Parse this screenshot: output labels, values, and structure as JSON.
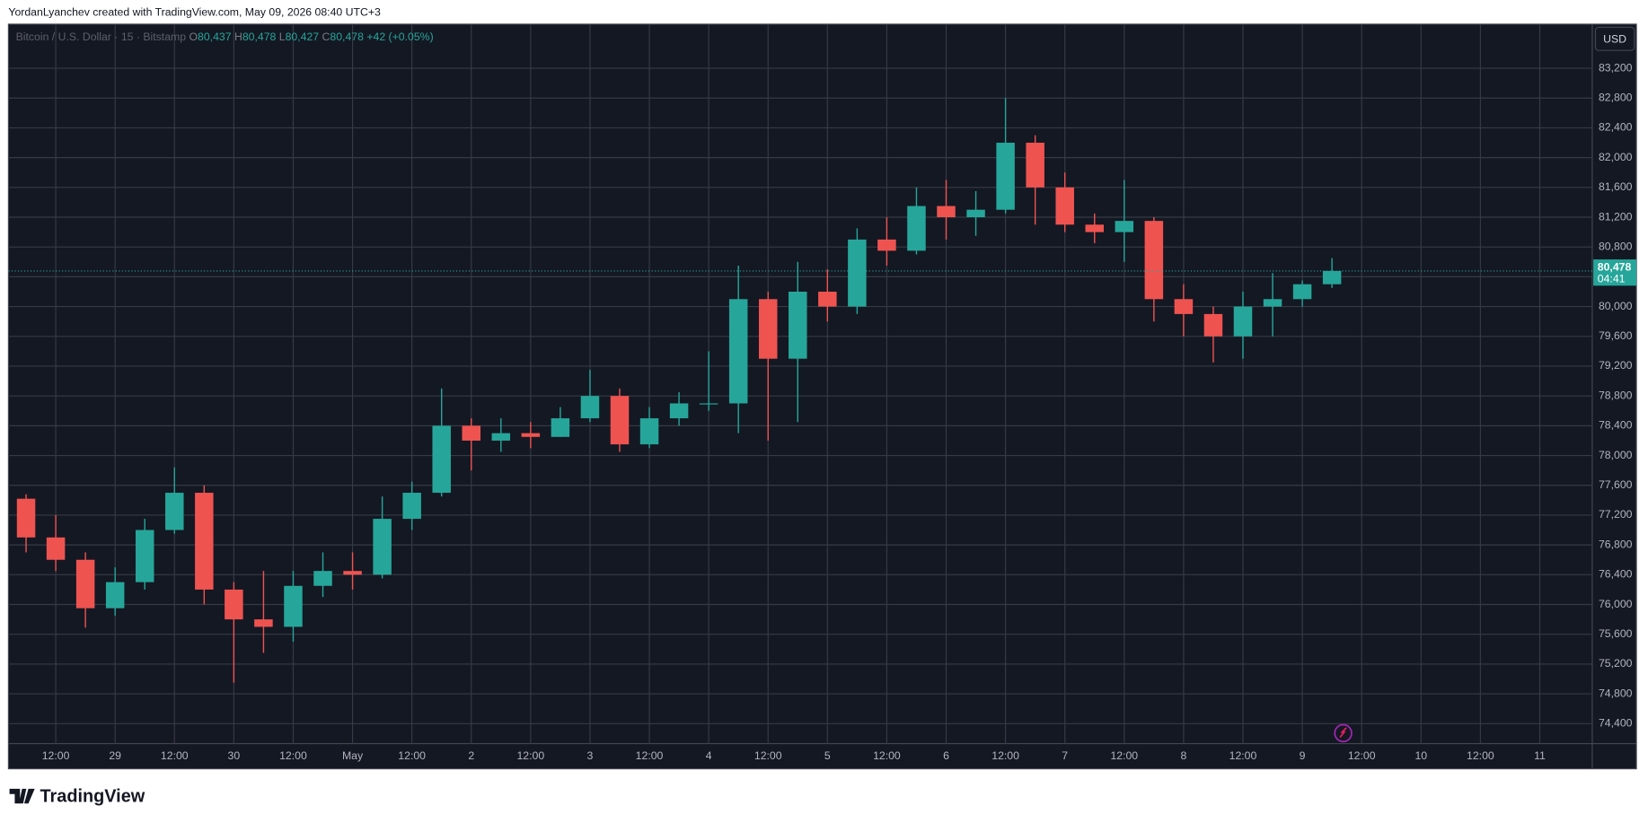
{
  "header": {
    "attribution": "YordanLyanchev created with TradingView.com, May 09, 2026 08:40 UTC+3"
  },
  "legend": {
    "symbol": "Bitcoin / U.S. Dollar · 15 · Bitstamp",
    "o": "O",
    "open": "80,437",
    "h": "H",
    "high": "80,478",
    "l": "L",
    "low": "80,427",
    "c": "C",
    "close": "80,478",
    "change": "+42 (+0.05%)"
  },
  "currency_button": "USD",
  "branding": {
    "logo_text": "TradingView"
  },
  "chart_data": {
    "type": "candlestick",
    "up_color": "#26a69a",
    "down_color": "#ef5350",
    "grid": true,
    "last_price": {
      "value": 80478,
      "label": "80,478"
    },
    "countdown": "04:41",
    "xlim": [
      "2026-04-28T02:26",
      "2026-05-11T10:37"
    ],
    "xticks": [
      {
        "value": "2026-04-28T12:00",
        "label": "12:00"
      },
      {
        "value": "2026-04-29T00:00",
        "label": "29"
      },
      {
        "value": "2026-04-29T12:00",
        "label": "12:00"
      },
      {
        "value": "2026-04-30T00:00",
        "label": "30"
      },
      {
        "value": "2026-04-30T12:00",
        "label": "12:00"
      },
      {
        "value": "2026-05-01T00:00",
        "label": "May"
      },
      {
        "value": "2026-05-01T12:00",
        "label": "12:00"
      },
      {
        "value": "2026-05-02T00:00",
        "label": "2"
      },
      {
        "value": "2026-05-02T12:00",
        "label": "12:00"
      },
      {
        "value": "2026-05-03T00:00",
        "label": "3"
      },
      {
        "value": "2026-05-03T12:00",
        "label": "12:00"
      },
      {
        "value": "2026-05-04T00:00",
        "label": "4"
      },
      {
        "value": "2026-05-04T12:00",
        "label": "12:00"
      },
      {
        "value": "2026-05-05T00:00",
        "label": "5"
      },
      {
        "value": "2026-05-05T12:00",
        "label": "12:00"
      },
      {
        "value": "2026-05-06T00:00",
        "label": "6"
      },
      {
        "value": "2026-05-06T12:00",
        "label": "12:00"
      },
      {
        "value": "2026-05-07T00:00",
        "label": "7"
      },
      {
        "value": "2026-05-07T12:00",
        "label": "12:00"
      },
      {
        "value": "2026-05-08T00:00",
        "label": "8"
      },
      {
        "value": "2026-05-08T12:00",
        "label": "12:00"
      },
      {
        "value": "2026-05-09T00:00",
        "label": "9"
      },
      {
        "value": "2026-05-09T12:00",
        "label": "12:00"
      },
      {
        "value": "2026-05-10T00:00",
        "label": "10"
      },
      {
        "value": "2026-05-10T12:00",
        "label": "12:00"
      },
      {
        "value": "2026-05-11T00:00",
        "label": "11"
      }
    ],
    "ylim": [
      74132,
      83792
    ],
    "yticks": [
      {
        "value": 74400,
        "label": "74,400"
      },
      {
        "value": 74800,
        "label": "74,800"
      },
      {
        "value": 75200,
        "label": "75,200"
      },
      {
        "value": 75600,
        "label": "75,600"
      },
      {
        "value": 76000,
        "label": "76,000"
      },
      {
        "value": 76400,
        "label": "76,400"
      },
      {
        "value": 76800,
        "label": "76,800"
      },
      {
        "value": 77200,
        "label": "77,200"
      },
      {
        "value": 77600,
        "label": "77,600"
      },
      {
        "value": 78000,
        "label": "78,000"
      },
      {
        "value": 78400,
        "label": "78,400"
      },
      {
        "value": 78800,
        "label": "78,800"
      },
      {
        "value": 79200,
        "label": "79,200"
      },
      {
        "value": 79600,
        "label": "79,600"
      },
      {
        "value": 80000,
        "label": "80,000"
      },
      {
        "value": 80400,
        "label": "80,400"
      },
      {
        "value": 80800,
        "label": "80,800"
      },
      {
        "value": 81200,
        "label": "81,200"
      },
      {
        "value": 81600,
        "label": "81,600"
      },
      {
        "value": 82000,
        "label": "82,000"
      },
      {
        "value": 82400,
        "label": "82,400"
      },
      {
        "value": 82800,
        "label": "82,800"
      },
      {
        "value": 83200,
        "label": "83,200"
      }
    ],
    "x": [
      "2026-04-28T06:00",
      "2026-04-28T12:00",
      "2026-04-28T18:00",
      "2026-04-29T00:00",
      "2026-04-29T06:00",
      "2026-04-29T12:00",
      "2026-04-29T18:00",
      "2026-04-30T00:00",
      "2026-04-30T06:00",
      "2026-04-30T12:00",
      "2026-04-30T18:00",
      "2026-05-01T00:00",
      "2026-05-01T06:00",
      "2026-05-01T12:00",
      "2026-05-01T18:00",
      "2026-05-02T00:00",
      "2026-05-02T06:00",
      "2026-05-02T12:00",
      "2026-05-02T18:00",
      "2026-05-03T00:00",
      "2026-05-03T06:00",
      "2026-05-03T12:00",
      "2026-05-03T18:00",
      "2026-05-04T00:00",
      "2026-05-04T06:00",
      "2026-05-04T12:00",
      "2026-05-04T18:00",
      "2026-05-05T00:00",
      "2026-05-05T06:00",
      "2026-05-05T12:00",
      "2026-05-05T18:00",
      "2026-05-06T00:00",
      "2026-05-06T06:00",
      "2026-05-06T12:00",
      "2026-05-06T18:00",
      "2026-05-07T00:00",
      "2026-05-07T06:00",
      "2026-05-07T12:00",
      "2026-05-07T18:00",
      "2026-05-08T00:00",
      "2026-05-08T06:00",
      "2026-05-08T12:00",
      "2026-05-08T18:00",
      "2026-05-09T00:00",
      "2026-05-09T06:00"
    ],
    "open": [
      77420,
      76900,
      76600,
      75950,
      76300,
      77000,
      77500,
      76200,
      75800,
      75700,
      76250,
      76450,
      76400,
      77150,
      77500,
      78400,
      78200,
      78300,
      78250,
      78500,
      78800,
      78150,
      78500,
      78700,
      78700,
      80100,
      79300,
      80200,
      80000,
      80900,
      80750,
      81350,
      81200,
      81300,
      82200,
      81600,
      81100,
      81000,
      81150,
      80100,
      79900,
      79600,
      80000,
      80100,
      80300
    ],
    "high": [
      77480,
      77200,
      76700,
      76500,
      77150,
      77840,
      77600,
      76300,
      76450,
      76450,
      76700,
      76700,
      77450,
      77650,
      78900,
      78500,
      78500,
      78450,
      78650,
      79150,
      78900,
      78650,
      78850,
      79400,
      80550,
      80200,
      80600,
      80500,
      81050,
      81200,
      81600,
      81700,
      81550,
      82800,
      82300,
      81800,
      81250,
      81700,
      81200,
      80300,
      80000,
      80200,
      80450,
      80350,
      80650
    ],
    "low": [
      76700,
      76450,
      75690,
      75850,
      76200,
      76950,
      76000,
      74950,
      75350,
      75500,
      76100,
      76200,
      76350,
      77000,
      77450,
      77800,
      78050,
      78100,
      78250,
      78450,
      78050,
      78100,
      78400,
      78600,
      78300,
      78200,
      78450,
      79800,
      79900,
      80550,
      80700,
      80900,
      80950,
      81250,
      81100,
      81000,
      80850,
      80600,
      79800,
      79600,
      79250,
      79300,
      79600,
      80000,
      80250
    ],
    "close": [
      76900,
      76600,
      75950,
      76300,
      77000,
      77500,
      76200,
      75800,
      75700,
      76250,
      76450,
      76400,
      77150,
      77500,
      78400,
      78200,
      78300,
      78250,
      78500,
      78800,
      78150,
      78500,
      78700,
      78700,
      80100,
      79300,
      80200,
      80000,
      80900,
      80750,
      81350,
      81200,
      81300,
      82200,
      81600,
      81100,
      81000,
      81150,
      80100,
      79900,
      79600,
      80000,
      80100,
      80300,
      80478
    ]
  }
}
